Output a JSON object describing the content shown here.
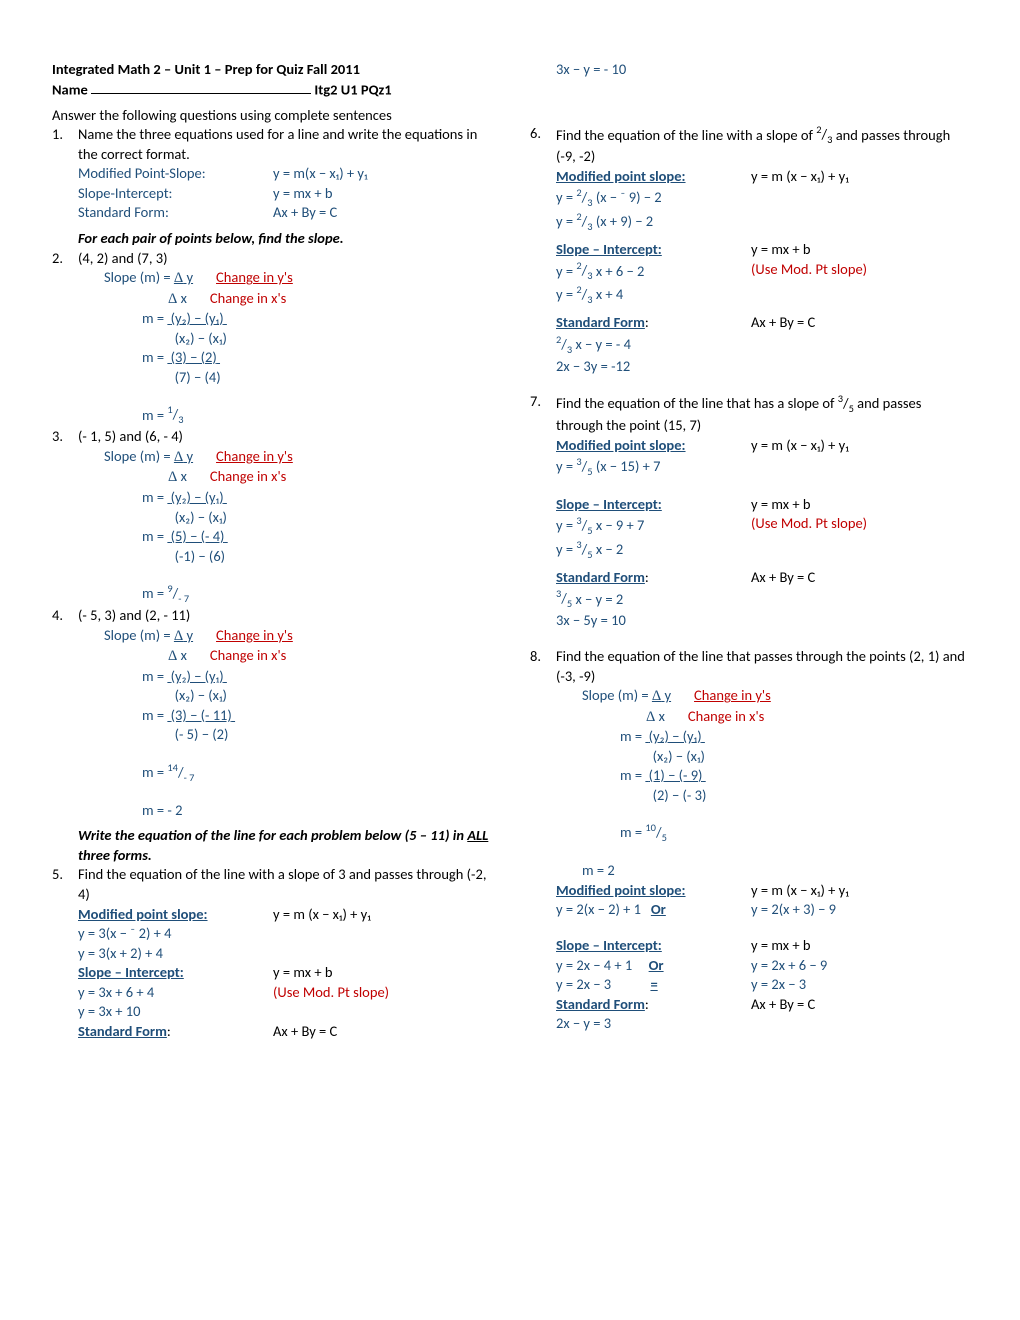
{
  "header": {
    "title": "Integrated Math 2 – Unit 1 – Prep for Quiz Fall 2011",
    "name_label": "Name",
    "id": "Itg2 U1 PQz1"
  },
  "intro": "Answer the following questions using complete sentences",
  "q1": {
    "num": "1.",
    "text": "Name the three equations used for a line and write the equations in the correct format.",
    "rows": [
      {
        "label": "Modified Point-Slope:",
        "eq": "y = m(x − x₁) + y₁"
      },
      {
        "label": "Slope-Intercept:",
        "eq": "y = mx + b"
      },
      {
        "label": "Standard Form:",
        "eq": "Ax + By = C"
      }
    ]
  },
  "slope_instr": "For each pair of points below, find the slope.",
  "q2": {
    "num": "2.",
    "pts": "(4, 2) and (7, 3)",
    "slope_label": "Slope (m) =",
    "dy": "Δ y",
    "dx": "Δ x",
    "cy": "Change in y's",
    "cx": "Change in x's",
    "f1n": "(y₂) − (y₁)",
    "f1d": "(x₂) − (x₁)",
    "f2n": "(3) − (2)",
    "f2d": "(7) − (4)",
    "res_pre": "m =  ",
    "res_top": "1",
    "res_bot": "3"
  },
  "q3": {
    "num": "3.",
    "pts": "(- 1, 5) and (6, - 4)",
    "f2n": "(5) − (- 4)",
    "f2d": "(-1) − (6)",
    "res_pre": "m =  ",
    "res_top": "9",
    "res_bot": "- 7"
  },
  "q4": {
    "num": "4.",
    "pts": "(- 5, 3) and (2, - 11)",
    "f2n": "(3) − (- 11)",
    "f2d": "(- 5) − (2)",
    "res_pre": "m =  ",
    "res_top": "14",
    "res_bot": "- 7",
    "final": "m = - 2"
  },
  "write_instr_a": "Write the equation of the line for each problem below (5 – 11) in ",
  "write_instr_b": "ALL",
  "write_instr_c": " three forms.",
  "q5": {
    "num": "5.",
    "text": "Find the equation of the line with a slope of 3 and passes through (-2, 4)",
    "mps_label": "Modified point slope:",
    "mps_eq": "y    =   m (x − x₁) + y₁",
    "mps1": "y   =   3(x − ⁻ 2) +  4",
    "mps2": "y   =   3(x + 2) +  4",
    "si_label": "Slope – Intercept:",
    "si_eq": "y    =   mx + b",
    "si1": "y   =   3x + 6 + 4",
    "si_use": "(Use Mod. Pt slope)",
    "si2": "y   =   3x +  10",
    "sf_label": "Standard Form",
    "sf_eq": "Ax + By = C",
    "sf1": "3x −  y = - 10"
  },
  "q6": {
    "num": "6.",
    "text_pre": "Find the equation of the line with a slope of  ",
    "frac_top": "2",
    "frac_bot": "3",
    "text_post": "  and passes through (-9, -2)",
    "mps1_pre": "y   =   ",
    "mps1_top": "2",
    "mps1_bot": "3",
    "mps1_post": " (x − ⁻ 9) − 2",
    "mps2_post": " (x + 9) − 2",
    "si1_post": " x +  6 − 2",
    "si2_post": " x +  4",
    "sf1_post": " x  −  y =  -  4",
    "sf2": "2x − 3y = -12"
  },
  "q7": {
    "num": "7.",
    "text_pre": "Find the equation of the line that has a slope of  ",
    "frac_top": "3",
    "frac_bot": "5",
    "text_post": " and passes through the point (15, 7)",
    "mps1_post": " (x −  15) + 7",
    "si1_post": " x −  9 + 7",
    "si2_post": " x −  2",
    "sf1_post": " x  −  y =  2",
    "sf2": "3x − 5y =  10"
  },
  "q8": {
    "num": "8.",
    "text": "Find the equation of the line that passes through the points (2, 1) and (-3, -9)",
    "f2n": "(1) − (- 9)",
    "f2d": "(2) − (- 3)",
    "res_top": "10",
    "res_bot": "5",
    "final": "m =  2",
    "mps_a": "y   =   2(x −  2) + 1",
    "or": "Or",
    "mps_b": "y   =   2(x +  3) − 9",
    "si_a": "y   =   2x −  4 + 1",
    "si_b": "y   =   2x +  6 − 9",
    "si_c": "y   =   2x −  3",
    "eq": "=",
    "si_d": "y   =   2x −  3",
    "sf1": "2x − y =  3"
  },
  "labels": {
    "mps": "Modified point slope:",
    "mps_eq": "y    =   m (x − x₁) + y₁",
    "si": "Slope – Intercept:",
    "si_eq": "y    =   mx + b",
    "sf": "Standard Form",
    "sf_eq": "Ax + By = C",
    "use": "(Use Mod. Pt slope)",
    "m_eq": "m = ",
    "slope_label": "Slope (m) =",
    "dy": "Δ y",
    "dx": "Δ x",
    "cy": "Change in y's",
    "cx": "Change in x's",
    "f1n": "(y₂) − (y₁)",
    "f1d": "(x₂) − (x₁)"
  }
}
